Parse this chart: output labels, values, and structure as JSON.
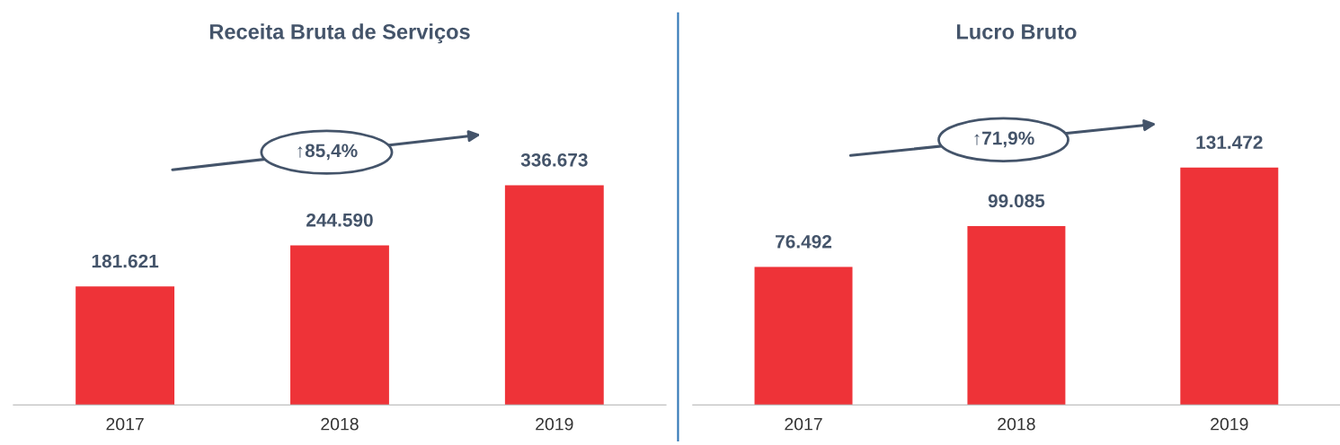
{
  "chart_data": [
    {
      "type": "bar",
      "title": "Receita Bruta de Serviços",
      "categories": [
        "2017",
        "2018",
        "2019"
      ],
      "values": [
        181621,
        244590,
        336673
      ],
      "value_labels": [
        "181.621",
        "244.590",
        "336.673"
      ],
      "color": "#ee3338",
      "tick_labels": "x",
      "grid": false,
      "annotations": [
        "↑85,4%"
      ]
    },
    {
      "type": "bar",
      "title": "Lucro Bruto",
      "categories": [
        "2017",
        "2018",
        "2019"
      ],
      "values": [
        76492,
        99085,
        131472
      ],
      "value_labels": [
        "76.492",
        "99.085",
        "131.472"
      ],
      "color": "#ee3338",
      "tick_labels": "x",
      "grid": false,
      "annotations": [
        "↑71,9%"
      ]
    }
  ]
}
